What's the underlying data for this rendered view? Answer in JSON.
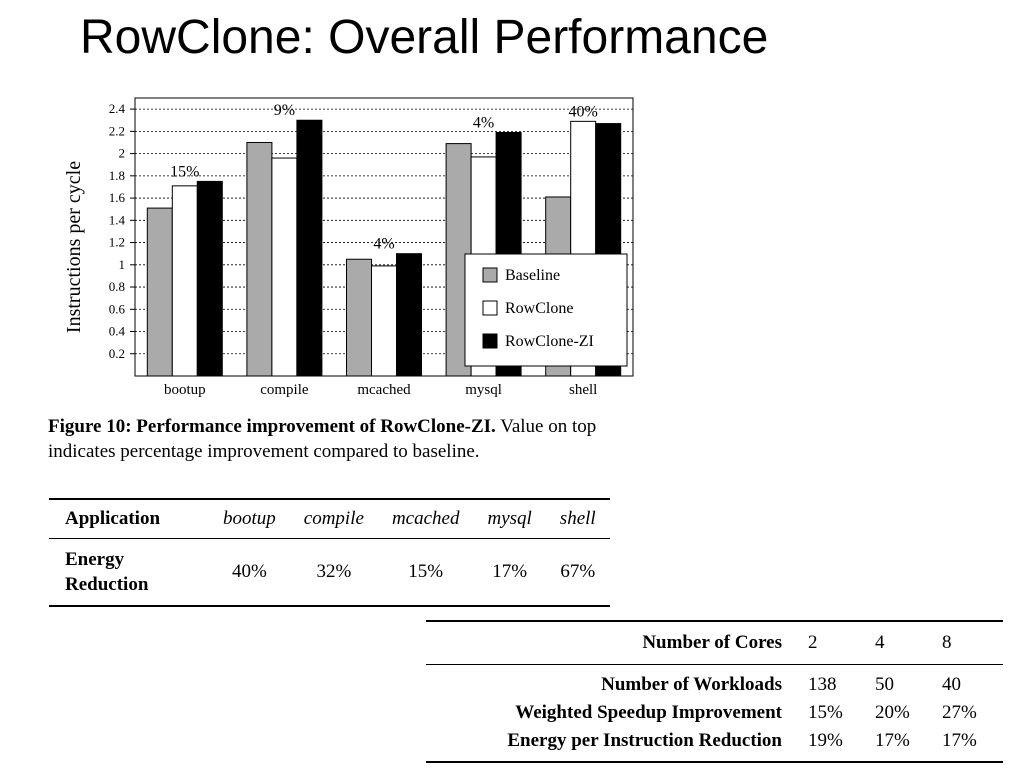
{
  "slide_title": "RowClone: Overall Performance",
  "chart_data": {
    "type": "bar",
    "ylabel": "Instructions per cycle",
    "ylim": [
      0,
      2.5
    ],
    "yticks": [
      "0.2",
      "0.4",
      "0.6",
      "0.8",
      "1",
      "1.2",
      "1.4",
      "1.6",
      "1.8",
      "2",
      "2.2",
      "2.4"
    ],
    "categories": [
      "bootup",
      "compile",
      "mcached",
      "mysql",
      "shell"
    ],
    "series": [
      {
        "name": "Baseline",
        "color": "#aaaaaa",
        "values": [
          1.51,
          2.1,
          1.05,
          2.09,
          1.61
        ]
      },
      {
        "name": "RowClone",
        "color": "#ffffff",
        "values": [
          1.71,
          1.96,
          0.99,
          1.97,
          2.29
        ]
      },
      {
        "name": "RowClone-ZI",
        "color": "#000000",
        "values": [
          1.75,
          2.3,
          1.1,
          2.19,
          2.27
        ]
      }
    ],
    "annotations": [
      "15%",
      "9%",
      "4%",
      "4%",
      "40%"
    ],
    "legend_position": "bottom-right",
    "grid": true
  },
  "caption": {
    "bold": "Figure 10: Performance improvement of RowClone-ZI.",
    "text": " Value on top indicates percentage improvement compared to baseline."
  },
  "energy_table": {
    "header_label": "Application",
    "apps": [
      "bootup",
      "compile",
      "mcached",
      "mysql",
      "shell"
    ],
    "row_label": "Energy Reduction",
    "values": [
      "40%",
      "32%",
      "15%",
      "17%",
      "67%"
    ]
  },
  "multicore_table": {
    "header": {
      "label": "Number of Cores",
      "values": [
        "2",
        "4",
        "8"
      ]
    },
    "rows": [
      {
        "label": "Number of Workloads",
        "values": [
          "138",
          "50",
          "40"
        ]
      },
      {
        "label": "Weighted Speedup Improvement",
        "values": [
          "15%",
          "20%",
          "27%"
        ]
      },
      {
        "label": "Energy per Instruction Reduction",
        "values": [
          "19%",
          "17%",
          "17%"
        ]
      }
    ]
  }
}
